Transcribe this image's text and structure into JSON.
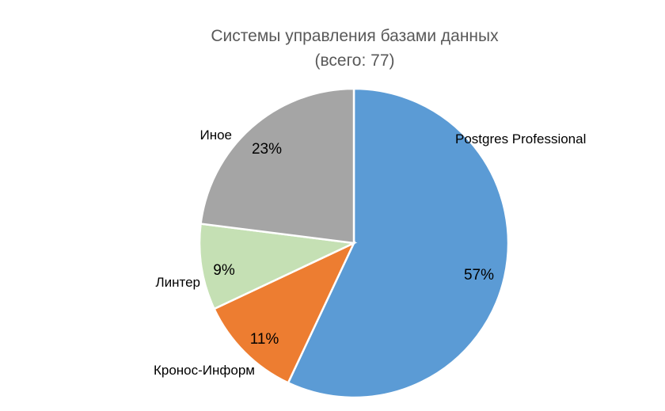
{
  "chart_data": {
    "type": "pie",
    "title": "Системы управления базами данных",
    "subtitle": "(всего: 77)",
    "slices": [
      {
        "label": "Postgres Professional",
        "value": 57,
        "value_label": "57%",
        "color": "#5B9BD5"
      },
      {
        "label": "Кронос-Информ",
        "value": 11,
        "value_label": "11%",
        "color": "#ED7D31"
      },
      {
        "label": "Линтер",
        "value": 9,
        "value_label": "9%",
        "color": "#C5E0B4"
      },
      {
        "label": "Иное",
        "value": 23,
        "value_label": "23%",
        "color": "#A5A5A5"
      }
    ],
    "start": "12 o'clock",
    "direction": "clockwise",
    "legend": "none"
  }
}
